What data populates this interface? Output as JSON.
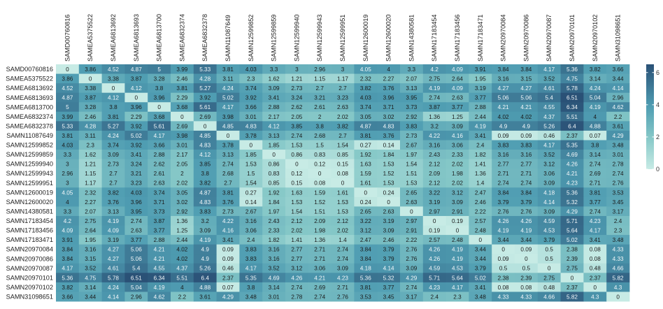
{
  "chart_data": {
    "type": "heatmap",
    "title": "",
    "xlabel": "",
    "ylabel": "",
    "colorbar": {
      "ticks": [
        0,
        2,
        4,
        6
      ],
      "range": [
        0,
        6.51
      ],
      "low_color": "#c7ebe5",
      "high_color": "#2a5176",
      "position": "right"
    },
    "rows": [
      "SAMD00760816",
      "SAMEA5375522",
      "SAMEA6813692",
      "SAMEA6813693",
      "SAMEA6813700",
      "SAMEA6832374",
      "SAMEA6832378",
      "SAMN11087649",
      "SAMN12599852",
      "SAMN12599859",
      "SAMN12599940",
      "SAMN12599943",
      "SAMN12599951",
      "SAMN12600019",
      "SAMN12600020",
      "SAMN14380581",
      "SAMN17183454",
      "SAMN17183456",
      "SAMN17183471",
      "SAMN20970084",
      "SAMN20970086",
      "SAMN20970087",
      "SAMN20970101",
      "SAMN20970102",
      "SAMN31098651"
    ],
    "cols": [
      "SAMD00760816",
      "SAMEA5375522",
      "SAMEA6813692",
      "SAMEA6813693",
      "SAMEA6813700",
      "SAMEA6832374",
      "SAMEA6832378",
      "SAMN11087649",
      "SAMN12599852",
      "SAMN12599859",
      "SAMN12599940",
      "SAMN12599943",
      "SAMN12599951",
      "SAMN12600019",
      "SAMN12600020",
      "SAMN14380581",
      "SAMN17183454",
      "SAMN17183456",
      "SAMN17183471",
      "SAMN20970084",
      "SAMN20970086",
      "SAMN20970087",
      "SAMN20970101",
      "SAMN20970102",
      "SAMN31098651"
    ],
    "values": [
      [
        "0",
        "3.86",
        "4.52",
        "4.87",
        "5",
        "3.99",
        "5.33",
        "3.81",
        "4.03",
        "3.3",
        "3",
        "2.96",
        "3",
        "4.05",
        "4",
        "3.3",
        "4.2",
        "4.09",
        "3.91",
        "3.84",
        "3.84",
        "4.17",
        "5.36",
        "3.82",
        "3.66"
      ],
      [
        "3.86",
        "0",
        "3.38",
        "3.87",
        "3.28",
        "2.46",
        "4.28",
        "3.11",
        "2.3",
        "1.62",
        "1.21",
        "1.15",
        "1.17",
        "2.32",
        "2.27",
        "2.07",
        "2.75",
        "2.64",
        "1.95",
        "3.16",
        "3.15",
        "3.52",
        "4.75",
        "3.14",
        "3.44"
      ],
      [
        "4.52",
        "3.38",
        "0",
        "4.12",
        "3.8",
        "3.81",
        "5.27",
        "4.24",
        "3.74",
        "3.09",
        "2.73",
        "2.7",
        "2.7",
        "3.82",
        "3.76",
        "3.13",
        "4.19",
        "4.09",
        "3.19",
        "4.27",
        "4.27",
        "4.61",
        "5.78",
        "4.24",
        "4.14"
      ],
      [
        "4.87",
        "3.87",
        "4.12",
        "0",
        "3.96",
        "2.29",
        "3.92",
        "5.02",
        "3.92",
        "3.41",
        "3.24",
        "3.21",
        "3.23",
        "4.03",
        "3.96",
        "3.95",
        "2.74",
        "2.63",
        "3.77",
        "5.06",
        "5.06",
        "5.4",
        "6.51",
        "5.04",
        "2.96"
      ],
      [
        "5",
        "3.28",
        "3.8",
        "3.96",
        "0",
        "3.68",
        "5.61",
        "4.17",
        "3.66",
        "2.88",
        "2.62",
        "2.61",
        "2.63",
        "3.74",
        "3.71",
        "3.73",
        "3.87",
        "3.77",
        "2.88",
        "4.21",
        "4.21",
        "4.55",
        "6.34",
        "4.19",
        "4.62"
      ],
      [
        "3.99",
        "2.46",
        "3.81",
        "2.29",
        "3.68",
        "0",
        "2.69",
        "3.98",
        "3.01",
        "2.17",
        "2.05",
        "2",
        "2.02",
        "3.05",
        "3.02",
        "2.92",
        "1.36",
        "1.25",
        "2.44",
        "4.02",
        "4.02",
        "4.37",
        "5.51",
        "4",
        "2.2"
      ],
      [
        "5.33",
        "4.28",
        "5.27",
        "3.92",
        "5.61",
        "2.69",
        "0",
        "4.85",
        "4.83",
        "4.12",
        "3.85",
        "3.8",
        "3.82",
        "4.87",
        "4.83",
        "3.83",
        "3.2",
        "3.09",
        "4.19",
        "4.9",
        "4.9",
        "5.26",
        "6.4",
        "4.88",
        "3.61"
      ],
      [
        "3.81",
        "3.11",
        "4.24",
        "5.02",
        "4.17",
        "3.98",
        "4.85",
        "0",
        "3.78",
        "3.13",
        "2.74",
        "2.68",
        "2.7",
        "3.81",
        "3.76",
        "2.73",
        "4.22",
        "4.16",
        "3.41",
        "0.09",
        "0.09",
        "0.46",
        "2.37",
        "0.07",
        "4.29"
      ],
      [
        "4.03",
        "2.3",
        "3.74",
        "3.92",
        "3.66",
        "3.01",
        "4.83",
        "3.78",
        "0",
        "1.85",
        "1.53",
        "1.5",
        "1.54",
        "0.27",
        "0.14",
        "2.67",
        "3.16",
        "3.06",
        "2.4",
        "3.83",
        "3.83",
        "4.17",
        "5.35",
        "3.8",
        "3.48"
      ],
      [
        "3.3",
        "1.62",
        "3.09",
        "3.41",
        "2.88",
        "2.17",
        "4.12",
        "3.13",
        "1.85",
        "0",
        "0.86",
        "0.83",
        "0.85",
        "1.92",
        "1.84",
        "1.97",
        "2.43",
        "2.33",
        "1.82",
        "3.16",
        "3.16",
        "3.52",
        "4.69",
        "3.14",
        "3.01"
      ],
      [
        "3",
        "1.21",
        "2.73",
        "3.24",
        "2.62",
        "2.05",
        "3.85",
        "2.74",
        "1.53",
        "0.86",
        "0",
        "0.12",
        "0.15",
        "1.63",
        "1.53",
        "1.54",
        "2.12",
        "2.02",
        "1.41",
        "2.77",
        "2.77",
        "3.12",
        "4.26",
        "2.74",
        "2.78"
      ],
      [
        "2.96",
        "1.15",
        "2.7",
        "3.21",
        "2.61",
        "2",
        "3.8",
        "2.68",
        "1.5",
        "0.83",
        "0.12",
        "0",
        "0.08",
        "1.59",
        "1.52",
        "1.51",
        "2.09",
        "1.98",
        "1.36",
        "2.71",
        "2.71",
        "3.06",
        "4.21",
        "2.69",
        "2.74"
      ],
      [
        "3",
        "1.17",
        "2.7",
        "3.23",
        "2.63",
        "2.02",
        "3.82",
        "2.7",
        "1.54",
        "0.85",
        "0.15",
        "0.08",
        "0",
        "1.61",
        "1.53",
        "1.53",
        "2.12",
        "2.02",
        "1.4",
        "2.74",
        "2.74",
        "3.09",
        "4.23",
        "2.71",
        "2.76"
      ],
      [
        "4.05",
        "2.32",
        "3.82",
        "4.03",
        "3.74",
        "3.05",
        "4.87",
        "3.81",
        "0.27",
        "1.92",
        "1.63",
        "1.59",
        "1.61",
        "0",
        "0.24",
        "2.65",
        "3.22",
        "3.12",
        "2.47",
        "3.84",
        "3.84",
        "4.18",
        "5.36",
        "3.81",
        "3.53"
      ],
      [
        "4",
        "2.27",
        "3.76",
        "3.96",
        "3.71",
        "3.02",
        "4.83",
        "3.76",
        "0.14",
        "1.84",
        "1.53",
        "1.52",
        "1.53",
        "0.24",
        "0",
        "2.63",
        "3.19",
        "3.09",
        "2.46",
        "3.79",
        "3.79",
        "4.14",
        "5.32",
        "3.77",
        "3.45"
      ],
      [
        "3.3",
        "2.07",
        "3.13",
        "3.95",
        "3.73",
        "2.92",
        "3.83",
        "2.73",
        "2.67",
        "1.97",
        "1.54",
        "1.51",
        "1.53",
        "2.65",
        "2.63",
        "0",
        "2.97",
        "2.91",
        "2.22",
        "2.76",
        "2.76",
        "3.09",
        "4.29",
        "2.74",
        "3.17"
      ],
      [
        "4.2",
        "2.75",
        "4.19",
        "2.74",
        "3.87",
        "1.36",
        "3.2",
        "4.22",
        "3.16",
        "2.43",
        "2.12",
        "2.09",
        "2.12",
        "3.22",
        "3.19",
        "2.97",
        "0",
        "0.19",
        "2.57",
        "4.26",
        "4.26",
        "4.59",
        "5.71",
        "4.23",
        "2.4"
      ],
      [
        "4.09",
        "2.64",
        "4.09",
        "2.63",
        "3.77",
        "1.25",
        "3.09",
        "4.16",
        "3.06",
        "2.33",
        "2.02",
        "1.98",
        "2.02",
        "3.12",
        "3.09",
        "2.91",
        "0.19",
        "0",
        "2.48",
        "4.19",
        "4.19",
        "4.53",
        "5.64",
        "4.17",
        "2.3"
      ],
      [
        "3.91",
        "1.95",
        "3.19",
        "3.77",
        "2.88",
        "2.44",
        "4.19",
        "3.41",
        "2.4",
        "1.82",
        "1.41",
        "1.36",
        "1.4",
        "2.47",
        "2.46",
        "2.22",
        "2.57",
        "2.48",
        "0",
        "3.44",
        "3.44",
        "3.79",
        "5.02",
        "3.41",
        "3.48"
      ],
      [
        "3.84",
        "3.16",
        "4.27",
        "5.06",
        "4.21",
        "4.02",
        "4.9",
        "0.09",
        "3.83",
        "3.16",
        "2.77",
        "2.71",
        "2.74",
        "3.84",
        "3.79",
        "2.76",
        "4.26",
        "4.19",
        "3.44",
        "0",
        "0.09",
        "0.5",
        "2.38",
        "0.08",
        "4.33"
      ],
      [
        "3.84",
        "3.15",
        "4.27",
        "5.06",
        "4.21",
        "4.02",
        "4.9",
        "0.09",
        "3.83",
        "3.16",
        "2.77",
        "2.71",
        "2.74",
        "3.84",
        "3.79",
        "2.76",
        "4.26",
        "4.19",
        "3.44",
        "0.09",
        "0",
        "0.5",
        "2.39",
        "0.08",
        "4.33"
      ],
      [
        "4.17",
        "3.52",
        "4.61",
        "5.4",
        "4.55",
        "4.37",
        "5.26",
        "0.46",
        "4.17",
        "3.52",
        "3.12",
        "3.06",
        "3.09",
        "4.18",
        "4.14",
        "3.09",
        "4.59",
        "4.53",
        "3.79",
        "0.5",
        "0.5",
        "0",
        "2.75",
        "0.48",
        "4.66"
      ],
      [
        "5.36",
        "4.75",
        "5.78",
        "6.51",
        "6.34",
        "5.51",
        "6.4",
        "2.37",
        "5.35",
        "4.69",
        "4.26",
        "4.21",
        "4.23",
        "5.36",
        "5.32",
        "4.29",
        "5.71",
        "5.64",
        "5.02",
        "2.38",
        "2.39",
        "2.75",
        "0",
        "2.37",
        "5.82"
      ],
      [
        "3.82",
        "3.14",
        "4.24",
        "5.04",
        "4.19",
        "4",
        "4.88",
        "0.07",
        "3.8",
        "3.14",
        "2.74",
        "2.69",
        "2.71",
        "3.81",
        "3.77",
        "2.74",
        "4.23",
        "4.17",
        "3.41",
        "0.08",
        "0.08",
        "0.48",
        "2.37",
        "0",
        "4.3"
      ],
      [
        "3.66",
        "3.44",
        "4.14",
        "2.96",
        "4.62",
        "2.2",
        "3.61",
        "4.29",
        "3.48",
        "3.01",
        "2.78",
        "2.74",
        "2.76",
        "3.53",
        "3.45",
        "3.17",
        "2.4",
        "2.3",
        "3.48",
        "4.33",
        "4.33",
        "4.66",
        "5.82",
        "4.3",
        "0"
      ]
    ]
  }
}
